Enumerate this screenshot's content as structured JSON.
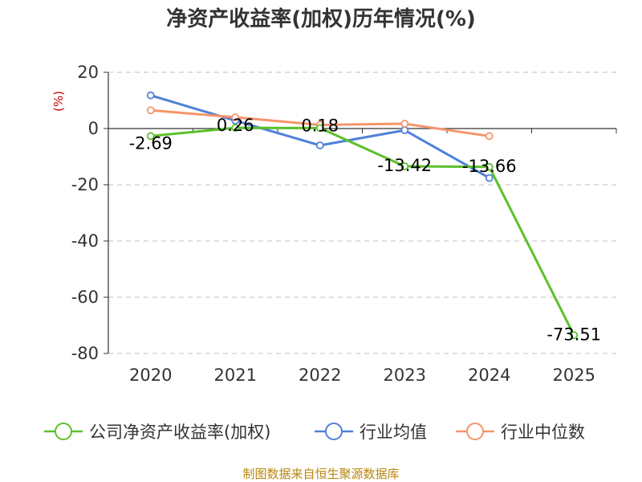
{
  "chart_data": {
    "type": "line",
    "title": "净资产收益率(加权)历年情况(%)",
    "unit_label": "(%)",
    "categories": [
      "2020",
      "2021",
      "2022",
      "2023",
      "2024",
      "2025"
    ],
    "ylim": [
      -80,
      20
    ],
    "yticks": [
      20,
      0,
      -20,
      -40,
      -60,
      -80
    ],
    "grid": "horizontal-dashed",
    "legend_position": "bottom",
    "series": [
      {
        "name": "公司净资产收益率(加权)",
        "color": "#5cc02c",
        "values": [
          -2.69,
          0.26,
          0.18,
          -13.42,
          -13.66,
          -73.51
        ],
        "labels": [
          "-2.69",
          "0.26",
          "0.18",
          "-13.42",
          "-13.66",
          "-73.51"
        ]
      },
      {
        "name": "行业均值",
        "color": "#4f81d9",
        "values": [
          11.8,
          2.8,
          -6.0,
          -0.6,
          -17.6,
          null
        ]
      },
      {
        "name": "行业中位数",
        "color": "#f5956b",
        "values": [
          6.5,
          4.0,
          1.3,
          1.7,
          -2.7,
          null
        ]
      }
    ],
    "source": "制图数据来自恒生聚源数据库"
  }
}
